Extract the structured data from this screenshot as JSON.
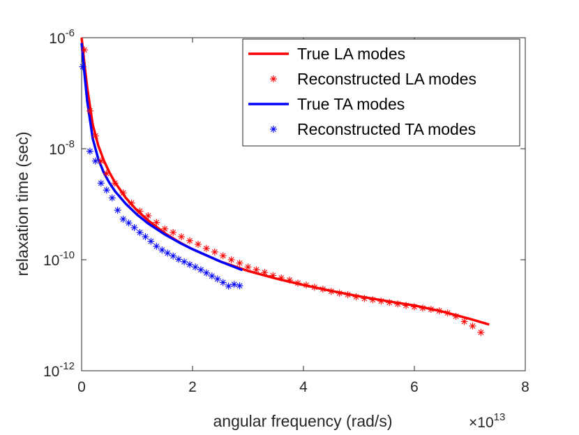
{
  "chart_data": {
    "type": "line",
    "xlabel": "angular frequency (rad/s)",
    "ylabel": "relaxation time (sec)",
    "x_multiplier_base": "×10",
    "x_multiplier_exponent": "13",
    "x_scale_factor": 10000000000000.0,
    "xlim": [
      0,
      8
    ],
    "ylim_log10": [
      -12,
      -6
    ],
    "y_scale": "log",
    "grid": false,
    "legend_position": "top-right",
    "x_ticks": [
      {
        "value": 0,
        "label": "0"
      },
      {
        "value": 2,
        "label": "2"
      },
      {
        "value": 4,
        "label": "4"
      },
      {
        "value": 6,
        "label": "6"
      },
      {
        "value": 8,
        "label": "8"
      }
    ],
    "y_ticks": [
      {
        "exp": -12,
        "base": "10",
        "sup": "-12"
      },
      {
        "exp": -10,
        "base": "10",
        "sup": "-10"
      },
      {
        "exp": -8,
        "base": "10",
        "sup": "-8"
      },
      {
        "exp": -6,
        "base": "10",
        "sup": "-6"
      }
    ],
    "series": [
      {
        "name": "True LA modes",
        "kind": "line",
        "color": "#ff0000",
        "x": [
          0.0,
          0.05,
          0.1,
          0.2,
          0.3,
          0.4,
          0.5,
          0.6,
          0.8,
          1.0,
          1.2,
          1.5,
          1.8,
          2.0,
          2.5,
          3.0,
          3.5,
          4.0,
          4.5,
          5.0,
          5.5,
          6.0,
          6.5,
          7.0,
          7.35
        ],
        "y": [
          1e-06,
          3.4e-07,
          1.26e-07,
          2.73e-08,
          1.15e-08,
          6.16e-09,
          3.76e-09,
          2.49e-09,
          1.29e-09,
          7.7e-10,
          5.1e-10,
          3e-10,
          1.97e-10,
          1.55e-10,
          9.3e-11,
          6.3e-11,
          4.6e-11,
          3.5e-11,
          2.75e-11,
          2.2e-11,
          1.8e-11,
          1.5e-11,
          1.17e-11,
          8.6e-12,
          6.8e-12
        ]
      },
      {
        "name": "Reconstructed LA modes",
        "kind": "markers",
        "color": "#ff0000",
        "x": [
          0.05,
          0.15,
          0.25,
          0.35,
          0.45,
          0.6,
          0.75,
          0.9,
          1.05,
          1.2,
          1.35,
          1.5,
          1.65,
          1.8,
          1.95,
          2.1,
          2.25,
          2.4,
          2.55,
          2.7,
          2.85,
          3.0,
          3.15,
          3.3,
          3.45,
          3.6,
          3.75,
          3.9,
          4.05,
          4.2,
          4.35,
          4.5,
          4.65,
          4.8,
          4.95,
          5.1,
          5.25,
          5.4,
          5.55,
          5.7,
          5.85,
          6.0,
          6.15,
          6.3,
          6.45,
          6.6,
          6.75,
          6.9,
          7.05,
          7.2
        ],
        "y": [
          6e-07,
          4.8e-08,
          1.7e-08,
          6e-09,
          3.6e-09,
          2.4e-09,
          1.6e-09,
          1.05e-09,
          7.5e-10,
          6.2e-10,
          4.7e-10,
          3.6e-10,
          3.1e-10,
          2.6e-10,
          2.2e-10,
          1.9e-10,
          1.6e-10,
          1.38e-10,
          1.18e-10,
          1e-10,
          8.7e-11,
          7.4e-11,
          6.6e-11,
          5.9e-11,
          5.2e-11,
          4.7e-11,
          4.3e-11,
          3.8e-11,
          3.5e-11,
          3.2e-11,
          2.95e-11,
          2.7e-11,
          2.5e-11,
          2.35e-11,
          2.15e-11,
          2e-11,
          1.9e-11,
          1.8e-11,
          1.7e-11,
          1.6e-11,
          1.5e-11,
          1.42e-11,
          1.35e-11,
          1.28e-11,
          1.2e-11,
          1.1e-11,
          9.6e-12,
          7.7e-12,
          6.4e-12,
          4.9e-12
        ]
      },
      {
        "name": "True TA modes",
        "kind": "line",
        "color": "#0000ff",
        "x": [
          0.0,
          0.05,
          0.1,
          0.2,
          0.3,
          0.4,
          0.5,
          0.6,
          0.8,
          1.0,
          1.2,
          1.5,
          1.8,
          2.0,
          2.5,
          2.9
        ],
        "y": [
          8e-07,
          2.3e-07,
          7.2e-08,
          1.53e-08,
          6.6e-09,
          3.7e-09,
          2.43e-09,
          1.73e-09,
          1.01e-09,
          6.5e-10,
          4.5e-10,
          2.85e-10,
          1.94e-10,
          1.55e-10,
          9.3e-11,
          6.5e-11
        ]
      },
      {
        "name": "Reconstructed TA modes",
        "kind": "markers",
        "color": "#0000ff",
        "x": [
          0.02,
          0.15,
          0.25,
          0.35,
          0.45,
          0.55,
          0.65,
          0.75,
          0.85,
          0.95,
          1.05,
          1.15,
          1.25,
          1.35,
          1.45,
          1.55,
          1.65,
          1.75,
          1.85,
          1.95,
          2.05,
          2.15,
          2.25,
          2.35,
          2.45,
          2.55,
          2.65,
          2.75,
          2.85
        ],
        "y": [
          3e-07,
          9e-09,
          6e-09,
          2.4e-09,
          1.8e-09,
          1.3e-09,
          7.8e-10,
          5.4e-10,
          4.6e-10,
          3.8e-10,
          3.1e-10,
          2.6e-10,
          2.15e-10,
          1.75e-10,
          1.5e-10,
          1.32e-10,
          1.17e-10,
          1.02e-10,
          9.2e-11,
          8.2e-11,
          7.4e-11,
          6.6e-11,
          5.8e-11,
          5.1e-11,
          4.5e-11,
          3.9e-11,
          3.35e-11,
          3.6e-11,
          3.4e-11
        ]
      }
    ]
  }
}
